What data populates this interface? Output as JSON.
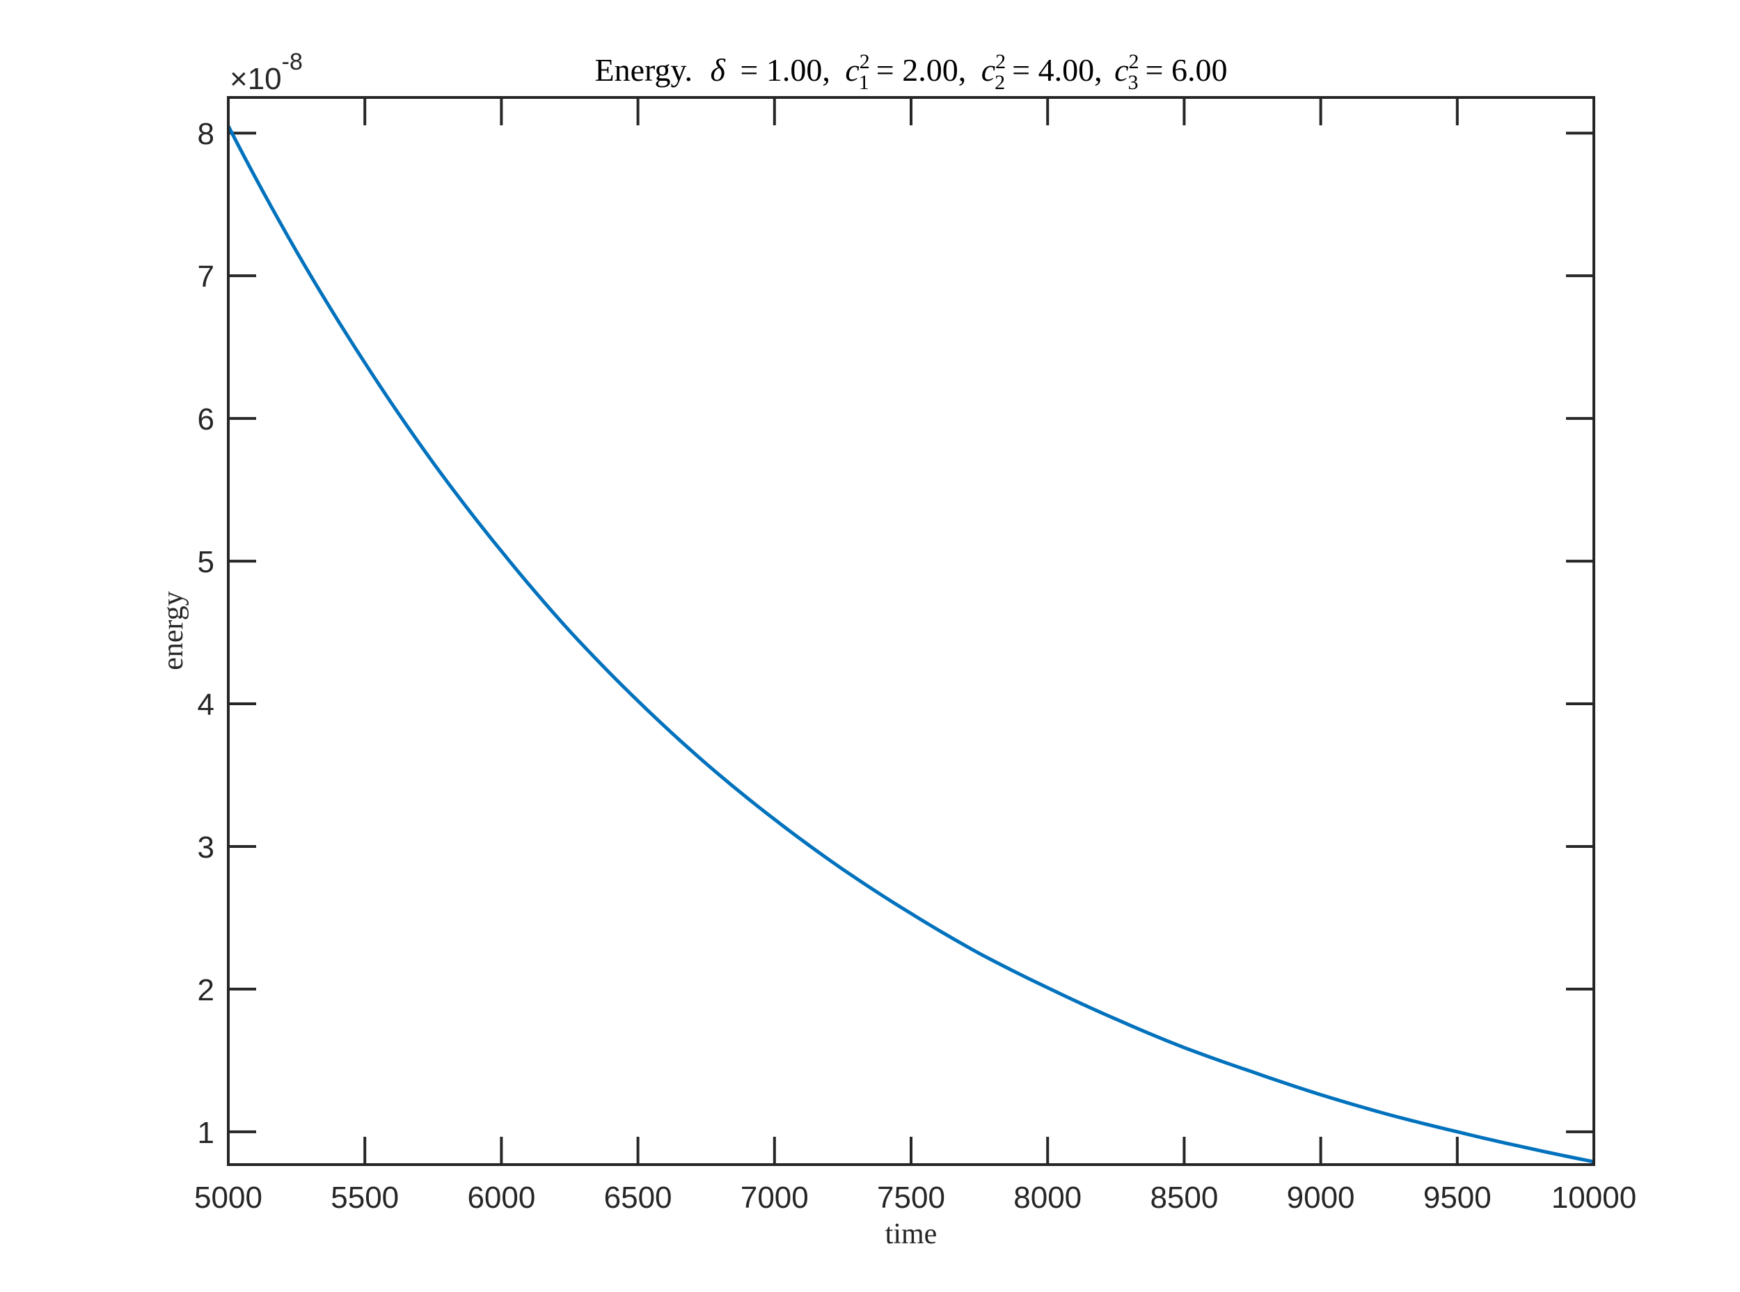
{
  "chart_data": {
    "type": "line",
    "title": {
      "prefix": "Energy.",
      "delta_symbol": "δ",
      "delta_value": "= 1.00,",
      "c_symbol": "c",
      "c1_sub": "1",
      "c1_sup": "2",
      "c1_value": "= 2.00,",
      "c2_sub": "2",
      "c2_sup": "2",
      "c2_value": "= 4.00,",
      "c3_sub": "3",
      "c3_sup": "2",
      "c3_value": "= 6.00"
    },
    "xlabel": "time",
    "ylabel": "energy",
    "y_exponent": {
      "prefix": "×10",
      "power": "-8"
    },
    "xlim": [
      5000,
      10000
    ],
    "ylim": [
      0.77,
      8.25
    ],
    "y_scale_factor": 1e-08,
    "x_ticks": [
      5000,
      5500,
      6000,
      6500,
      7000,
      7500,
      8000,
      8500,
      9000,
      9500,
      10000
    ],
    "x_tick_labels": [
      "5000",
      "5500",
      "6000",
      "6500",
      "7000",
      "7500",
      "8000",
      "8500",
      "9000",
      "9500",
      "10000"
    ],
    "y_ticks": [
      1,
      2,
      3,
      4,
      5,
      6,
      7,
      8
    ],
    "y_tick_labels": [
      "1",
      "2",
      "3",
      "4",
      "5",
      "6",
      "7",
      "8"
    ],
    "grid": false,
    "box": true,
    "series": [
      {
        "color": "#0072BD",
        "x": [
          5000,
          5250,
          5500,
          5750,
          6000,
          6250,
          6500,
          6750,
          7000,
          7250,
          7500,
          7750,
          8000,
          8250,
          8500,
          8750,
          9000,
          9250,
          9500,
          9750,
          10000
        ],
        "y": [
          8.05,
          7.17,
          6.39,
          5.69,
          5.07,
          4.51,
          4.02,
          3.58,
          3.19,
          2.84,
          2.53,
          2.25,
          2.01,
          1.79,
          1.59,
          1.42,
          1.26,
          1.12,
          1.0,
          0.89,
          0.79
        ]
      }
    ]
  }
}
